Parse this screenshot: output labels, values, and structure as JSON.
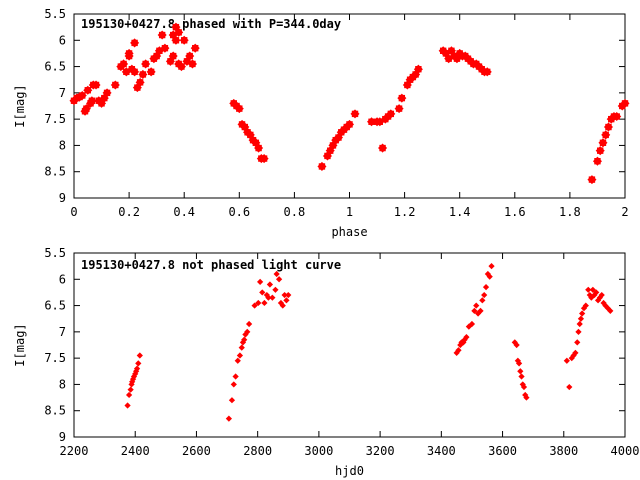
{
  "chart_data": [
    {
      "type": "scatter",
      "title": "195130+0427.8 phased with P=344.0day",
      "xlabel": "phase",
      "ylabel": "I[mag]",
      "xlim": [
        0,
        2
      ],
      "ylim": [
        5.5,
        9
      ],
      "y_inverted": true,
      "x_ticks": [
        "0",
        "0.2",
        "0.4",
        "0.6",
        "0.8",
        "1",
        "1.2",
        "1.4",
        "1.6",
        "1.8",
        "2"
      ],
      "y_ticks": [
        "5.5",
        "6",
        "6.5",
        "7",
        "7.5",
        "8",
        "8.5",
        "9"
      ],
      "grid": false,
      "marker_color": "#ff0000",
      "series": [
        {
          "x": [
            0.0,
            0.01,
            0.02,
            0.03,
            0.04,
            0.045,
            0.05,
            0.06,
            0.065,
            0.07,
            0.08,
            0.09,
            0.1,
            0.11,
            0.12,
            0.15,
            0.17,
            0.18,
            0.19,
            0.2,
            0.2,
            0.21,
            0.22,
            0.22,
            0.23,
            0.24,
            0.25,
            0.26,
            0.28,
            0.29,
            0.3,
            0.31,
            0.32,
            0.33,
            0.35,
            0.36,
            0.36,
            0.37,
            0.37,
            0.38,
            0.38,
            0.39,
            0.4,
            0.41,
            0.42,
            0.43,
            0.44,
            0.58,
            0.59,
            0.6,
            0.61,
            0.62,
            0.63,
            0.64,
            0.65,
            0.66,
            0.67,
            0.68,
            0.69,
            0.9,
            0.92,
            0.93,
            0.94,
            0.95,
            0.96,
            0.97,
            0.98,
            0.99,
            1.0,
            1.02,
            1.08,
            1.1,
            1.11,
            1.12,
            1.13,
            1.14,
            1.15,
            1.18,
            1.19,
            1.21,
            1.22,
            1.23,
            1.24,
            1.25,
            1.34,
            1.35,
            1.36,
            1.37,
            1.38,
            1.39,
            1.4,
            1.41,
            1.42,
            1.43,
            1.44,
            1.45,
            1.46,
            1.47,
            1.48,
            1.49,
            1.5,
            1.88,
            1.9,
            1.91,
            1.92,
            1.93,
            1.94,
            1.95,
            1.96,
            1.97,
            1.99,
            2.0
          ],
          "y": [
            7.15,
            7.1,
            7.08,
            7.05,
            7.35,
            7.3,
            6.95,
            7.2,
            7.15,
            6.85,
            6.85,
            7.15,
            7.2,
            7.1,
            7.0,
            6.85,
            6.5,
            6.45,
            6.6,
            6.3,
            6.25,
            6.55,
            6.6,
            6.05,
            6.9,
            6.8,
            6.65,
            6.45,
            6.6,
            6.35,
            6.3,
            6.2,
            5.9,
            6.15,
            6.4,
            5.9,
            6.3,
            5.75,
            6.0,
            6.45,
            5.85,
            6.5,
            6.0,
            6.4,
            6.3,
            6.45,
            6.15,
            7.2,
            7.25,
            7.3,
            7.6,
            7.65,
            7.75,
            7.8,
            7.9,
            7.95,
            8.05,
            8.25,
            8.25,
            8.4,
            8.2,
            8.1,
            8.0,
            7.9,
            7.85,
            7.75,
            7.7,
            7.65,
            7.6,
            7.4,
            7.55,
            7.55,
            7.55,
            8.05,
            7.5,
            7.45,
            7.4,
            7.3,
            7.1,
            6.85,
            6.75,
            6.7,
            6.65,
            6.55,
            6.2,
            6.25,
            6.35,
            6.2,
            6.3,
            6.35,
            6.25,
            6.3,
            6.3,
            6.35,
            6.4,
            6.45,
            6.45,
            6.5,
            6.55,
            6.6,
            6.6,
            8.65,
            8.3,
            8.1,
            7.95,
            7.8,
            7.65,
            7.5,
            7.45,
            7.45,
            7.25,
            7.2
          ]
        }
      ]
    },
    {
      "type": "scatter",
      "title": "195130+0427.8 not phased light curve",
      "xlabel": "hjd0",
      "ylabel": "I[mag]",
      "xlim": [
        2200,
        4000
      ],
      "ylim": [
        5.5,
        9
      ],
      "y_inverted": true,
      "x_ticks": [
        "2200",
        "2400",
        "2600",
        "2800",
        "3000",
        "3200",
        "3400",
        "3600",
        "3800",
        "4000"
      ],
      "y_ticks": [
        "5.5",
        "6",
        "6.5",
        "7",
        "7.5",
        "8",
        "8.5",
        "9"
      ],
      "grid": false,
      "marker_color": "#ff0000",
      "series": [
        {
          "x": [
            2375,
            2380,
            2385,
            2388,
            2390,
            2393,
            2396,
            2400,
            2403,
            2406,
            2410,
            2415,
            2706,
            2716,
            2722,
            2728,
            2735,
            2742,
            2748,
            2752,
            2756,
            2760,
            2766,
            2772,
            2790,
            2802,
            2808,
            2815,
            2822,
            2830,
            2835,
            2840,
            2848,
            2858,
            2862,
            2870,
            2876,
            2882,
            2888,
            2894,
            2900,
            3450,
            3456,
            3462,
            3466,
            3472,
            3476,
            3482,
            3490,
            3500,
            3508,
            3514,
            3520,
            3528,
            3534,
            3540,
            3546,
            3552,
            3558,
            3564,
            3640,
            3646,
            3650,
            3654,
            3658,
            3662,
            3666,
            3670,
            3674,
            3678,
            3810,
            3818,
            3826,
            3832,
            3838,
            3844,
            3848,
            3852,
            3856,
            3860,
            3866,
            3872,
            3880,
            3885,
            3890,
            3895,
            3900,
            3906,
            3912,
            3918,
            3924,
            3930,
            3936,
            3944,
            3952
          ],
          "y": [
            8.4,
            8.2,
            8.1,
            8.0,
            7.95,
            7.9,
            7.85,
            7.8,
            7.75,
            7.7,
            7.6,
            7.45,
            8.65,
            8.3,
            8.0,
            7.85,
            7.55,
            7.45,
            7.3,
            7.2,
            7.15,
            7.05,
            7.0,
            6.85,
            6.5,
            6.45,
            6.05,
            6.25,
            6.45,
            6.3,
            6.35,
            6.1,
            6.35,
            6.2,
            5.9,
            6.0,
            6.45,
            6.5,
            6.3,
            6.4,
            6.3,
            7.4,
            7.35,
            7.25,
            7.2,
            7.2,
            7.15,
            7.1,
            6.9,
            6.85,
            6.6,
            6.5,
            6.65,
            6.6,
            6.4,
            6.3,
            6.15,
            5.9,
            5.95,
            5.75,
            7.2,
            7.25,
            7.55,
            7.6,
            7.75,
            7.85,
            8.0,
            8.05,
            8.2,
            8.25,
            7.55,
            8.05,
            7.5,
            7.45,
            7.4,
            7.2,
            7.0,
            6.85,
            6.75,
            6.65,
            6.55,
            6.5,
            6.2,
            6.3,
            6.35,
            6.2,
            6.3,
            6.25,
            6.4,
            6.35,
            6.3,
            6.45,
            6.5,
            6.55,
            6.6
          ]
        }
      ]
    }
  ]
}
